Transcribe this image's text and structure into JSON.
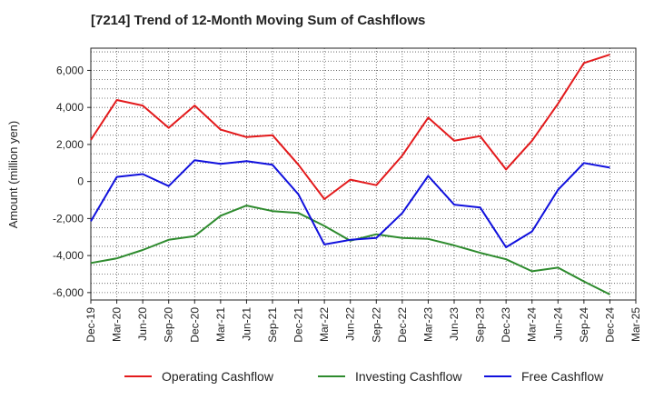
{
  "chart_data": {
    "type": "line",
    "title": "[7214]  Trend of 12-Month Moving Sum of Cashflows",
    "xlabel": "",
    "ylabel": "Amount (million yen)",
    "x": [
      "Dec-19",
      "Mar-20",
      "Jun-20",
      "Sep-20",
      "Dec-20",
      "Mar-21",
      "Jun-21",
      "Sep-21",
      "Dec-21",
      "Mar-22",
      "Jun-22",
      "Sep-22",
      "Dec-22",
      "Mar-23",
      "Jun-23",
      "Sep-23",
      "Dec-23",
      "Mar-24",
      "Jun-24",
      "Sep-24",
      "Dec-24",
      "Mar-25"
    ],
    "ylim": [
      -6400,
      7200
    ],
    "yticks": [
      -6000,
      -4000,
      -2000,
      0,
      2000,
      4000,
      6000
    ],
    "ytick_labels": [
      "-6,000",
      "-4,000",
      "-2,000",
      "0",
      "2,000",
      "4,000",
      "6,000"
    ],
    "grid": true,
    "legend_position": "bottom",
    "series": [
      {
        "name": "Operating Cashflow",
        "color": "#e31a1c",
        "values": [
          2250,
          4400,
          4100,
          2900,
          4100,
          2800,
          2400,
          2500,
          900,
          -950,
          100,
          -200,
          1400,
          3450,
          2200,
          2450,
          650,
          2200,
          4200,
          6400,
          6850,
          null
        ]
      },
      {
        "name": "Investing Cashflow",
        "color": "#2e8b2e",
        "values": [
          -4400,
          -4150,
          -3700,
          -3150,
          -2950,
          -1850,
          -1300,
          -1600,
          -1700,
          -2400,
          -3200,
          -2850,
          -3050,
          -3100,
          -3450,
          -3850,
          -4200,
          -4850,
          -4650,
          -5400,
          -6100,
          null
        ]
      },
      {
        "name": "Free Cashflow",
        "color": "#1010dd",
        "values": [
          -2150,
          250,
          400,
          -250,
          1150,
          950,
          1100,
          900,
          -700,
          -3400,
          -3150,
          -3050,
          -1700,
          300,
          -1250,
          -1400,
          -3550,
          -2700,
          -450,
          1000,
          750,
          null
        ]
      }
    ]
  }
}
